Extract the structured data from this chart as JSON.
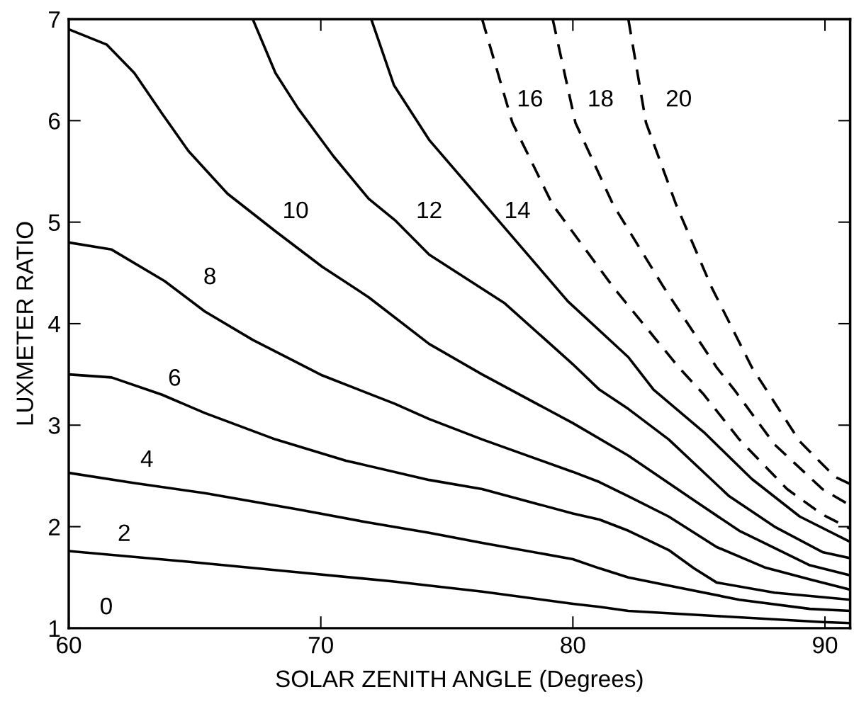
{
  "chart_data": {
    "type": "line",
    "xlabel": "SOLAR ZENITH ANGLE (Degrees)",
    "ylabel": "LUXMETER RATIO",
    "xlim": [
      60,
      91
    ],
    "xticks": [
      60,
      70,
      80,
      90
    ],
    "ylim": [
      1,
      7
    ],
    "yticks": [
      1,
      2,
      3,
      4,
      5,
      6,
      7
    ],
    "grid": false,
    "marker": "none",
    "series": [
      {
        "name": "2",
        "color": "#000000",
        "line_style": "solid",
        "x": [
          60,
          64.5,
          69.1,
          72.9,
          74.3,
          76.4,
          80,
          81.05,
          82.2,
          85.7,
          89.9,
          91
        ],
        "values": [
          1.76,
          1.66,
          1.55,
          1.46,
          1.42,
          1.36,
          1.24,
          1.21,
          1.17,
          1.12,
          1.06,
          1.05
        ]
      },
      {
        "name": "4",
        "color": "#000000",
        "line_style": "solid",
        "x": [
          60,
          62.6,
          65.4,
          69.1,
          71.9,
          74.3,
          76.4,
          80,
          81.05,
          82.2,
          83.8,
          86.6,
          89.4,
          91
        ],
        "values": [
          2.53,
          2.43,
          2.33,
          2.17,
          2.04,
          1.94,
          1.84,
          1.68,
          1.59,
          1.5,
          1.42,
          1.28,
          1.19,
          1.17
        ]
      },
      {
        "name": "6",
        "color": "#000000",
        "line_style": "solid",
        "x": [
          60,
          61.7,
          63.7,
          65.4,
          68.2,
          71,
          74.3,
          76.4,
          80,
          81.05,
          82.2,
          83.8,
          84.8,
          85.7,
          88,
          91
        ],
        "values": [
          3.5,
          3.47,
          3.3,
          3.12,
          2.86,
          2.65,
          2.46,
          2.37,
          2.13,
          2.07,
          1.96,
          1.77,
          1.59,
          1.45,
          1.35,
          1.28
        ]
      },
      {
        "name": "8",
        "color": "#000000",
        "line_style": "solid",
        "x": [
          60,
          61.7,
          63.8,
          65.4,
          67.3,
          70.06,
          72.94,
          74.3,
          76.4,
          80,
          81.05,
          82.2,
          83.8,
          85.7,
          87.6,
          89.4,
          91
        ],
        "values": [
          4.8,
          4.73,
          4.42,
          4.12,
          3.84,
          3.49,
          3.21,
          3.06,
          2.86,
          2.54,
          2.44,
          2.3,
          2.1,
          1.8,
          1.6,
          1.48,
          1.38
        ]
      },
      {
        "name": "10",
        "color": "#000000",
        "line_style": "solid",
        "x": [
          60,
          61.5,
          62.6,
          63.7,
          64.75,
          66.3,
          68.2,
          70.06,
          71.9,
          74.3,
          76.4,
          80,
          82.2,
          84.8,
          86.6,
          89.4,
          91
        ],
        "values": [
          6.9,
          6.75,
          6.47,
          6.07,
          5.7,
          5.28,
          4.91,
          4.56,
          4.26,
          3.8,
          3.5,
          3.02,
          2.7,
          2.26,
          1.96,
          1.62,
          1.52
        ]
      },
      {
        "name": "12",
        "color": "#000000",
        "line_style": "solid",
        "x": [
          67.3,
          68.2,
          69.1,
          70.5,
          71.9,
          72.94,
          74.3,
          77.3,
          80,
          81.05,
          82.2,
          83.8,
          86.2,
          88,
          89.9,
          91
        ],
        "values": [
          7.0,
          6.47,
          6.12,
          5.65,
          5.23,
          5.02,
          4.68,
          4.2,
          3.6,
          3.35,
          3.16,
          2.86,
          2.3,
          2.0,
          1.75,
          1.69
        ]
      },
      {
        "name": "14",
        "color": "#000000",
        "line_style": "solid",
        "x": [
          72.0,
          72.9,
          74.3,
          77.0,
          79.8,
          82.2,
          83.2,
          85.2,
          87.1,
          89,
          91
        ],
        "values": [
          7.0,
          6.35,
          5.81,
          5.03,
          4.22,
          3.67,
          3.35,
          2.93,
          2.47,
          2.1,
          1.85
        ]
      },
      {
        "name": "16",
        "color": "#000000",
        "line_style": "dashed",
        "x": [
          76.4,
          77.6,
          79.2,
          81.6,
          84.2,
          85.2,
          86.6,
          88.5,
          89.9,
          91
        ],
        "values": [
          7.0,
          5.98,
          5.17,
          4.36,
          3.57,
          3.3,
          2.86,
          2.37,
          2.12,
          1.98
        ]
      },
      {
        "name": "18",
        "color": "#000000",
        "line_style": "dashed",
        "x": [
          79.2,
          80.1,
          81.6,
          83.6,
          85.7,
          86.4,
          88,
          89.9,
          91
        ],
        "values": [
          7.0,
          5.98,
          5.17,
          4.36,
          3.57,
          3.35,
          2.81,
          2.37,
          2.21
        ]
      },
      {
        "name": "20",
        "color": "#000000",
        "line_style": "dashed",
        "x": [
          82.2,
          82.9,
          84.1,
          85.5,
          87.1,
          87.8,
          89,
          90.4,
          91
        ],
        "values": [
          7.0,
          5.98,
          5.17,
          4.36,
          3.57,
          3.3,
          2.84,
          2.49,
          2.42
        ]
      }
    ],
    "annotations": [
      "0"
    ]
  }
}
